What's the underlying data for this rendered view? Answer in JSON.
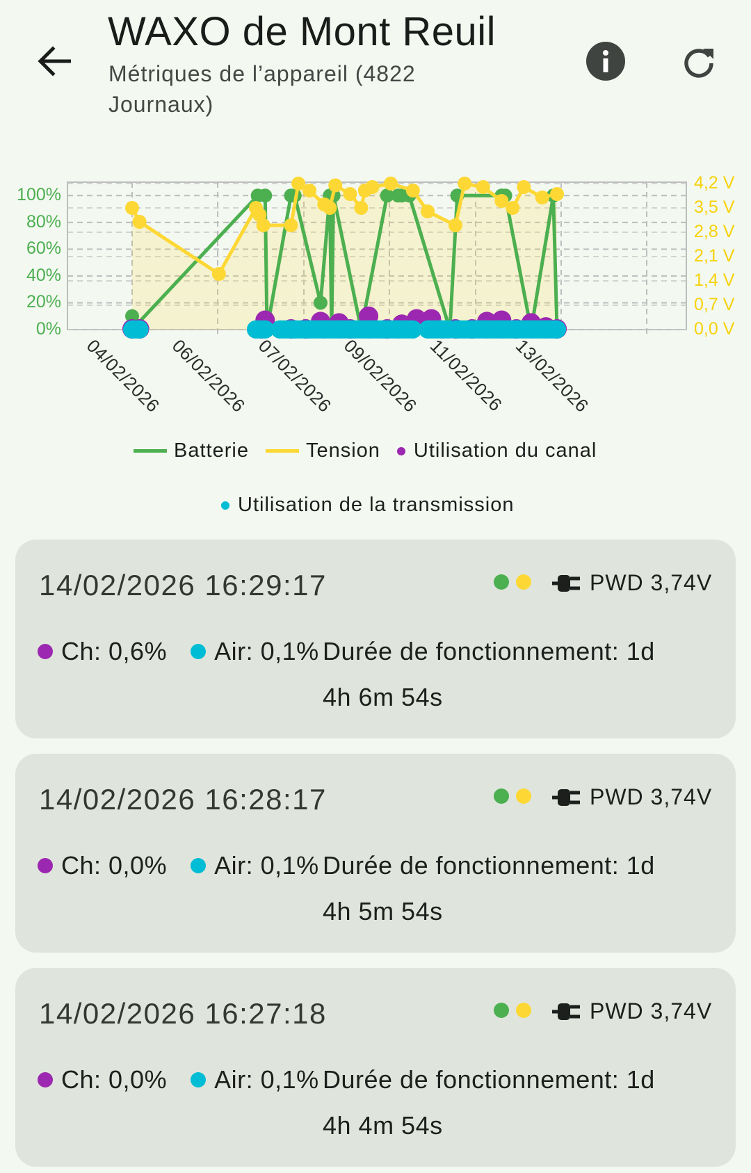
{
  "header": {
    "title": "WAXO de Mont Reuil",
    "subtitle": "Métriques de l’appareil (4822 Journaux)",
    "icons": {
      "back": "arrow-left-icon",
      "info": "info-icon",
      "refresh": "refresh-icon"
    }
  },
  "colors": {
    "battery": "#4caf50",
    "voltage": "#fdd835",
    "channel": "#9c27b0",
    "air": "#00bcd4",
    "card_bg": "#dfe5dc",
    "page_bg": "#f3f8f1"
  },
  "chart_data": {
    "type": "line",
    "x_tick_labels": [
      "04/02/2026",
      "06/02/2026",
      "07/02/2026",
      "09/02/2026",
      "11/02/2026",
      "13/02/2026"
    ],
    "y_left_ticks": [
      "0%",
      "20%",
      "40%",
      "60%",
      "80%",
      "100%"
    ],
    "y_right_ticks": [
      "0,0 V",
      "0,7 V",
      "1,4 V",
      "2,1 V",
      "2,8 V",
      "3,5 V",
      "4,2 V"
    ],
    "y_left_range": [
      0,
      110
    ],
    "y_right_range": [
      0,
      4.2
    ],
    "x_range": [
      0,
      15
    ],
    "grid": true,
    "legend_position": "bottom",
    "series": [
      {
        "name": "Batterie",
        "axis": "left",
        "style": "line",
        "x": [
          0,
          0,
          3.4,
          3.6,
          3.65,
          3.65,
          4.3,
          4.4,
          5.1,
          5.35,
          5.4,
          5.45,
          6.2,
          6.9,
          7.2,
          7.3,
          7.5,
          8.6,
          8.8,
          10.0,
          10.1,
          10.8,
          11.4,
          11.5
        ],
        "y": [
          10,
          0,
          100,
          100,
          3,
          0,
          100,
          100,
          20,
          100,
          0,
          100,
          0,
          100,
          100,
          100,
          100,
          0,
          100,
          100,
          100,
          0,
          100,
          0
        ]
      },
      {
        "name": "Tension",
        "axis": "right",
        "style": "line",
        "x": [
          0,
          0.2,
          2.35,
          3.35,
          3.45,
          3.55,
          4.3,
          4.5,
          4.8,
          5.2,
          5.35,
          5.5,
          5.9,
          6.2,
          6.3,
          6.5,
          7.0,
          7.6,
          8.0,
          8.75,
          9.0,
          9.5,
          10.0,
          10.3,
          10.6,
          11.1,
          11.5
        ],
        "y": [
          3.5,
          3.1,
          1.6,
          3.5,
          3.3,
          3.0,
          3.0,
          4.2,
          4.0,
          3.6,
          3.5,
          4.15,
          3.9,
          3.5,
          4.0,
          4.1,
          4.2,
          4.0,
          3.4,
          3.0,
          4.2,
          4.1,
          3.7,
          3.5,
          4.1,
          3.8,
          3.9
        ]
      },
      {
        "name": "Utilisation du canal",
        "axis": "left",
        "style": "scatter",
        "x": [
          0,
          0.2,
          3.5,
          3.6,
          4.3,
          4.7,
          5.1,
          5.6,
          5.9,
          6.4,
          6.9,
          7.3,
          7.7,
          8.1,
          8.75,
          9.2,
          9.6,
          10.0,
          10.4,
          10.8,
          11.2,
          11.5
        ],
        "y": [
          0.5,
          0.5,
          0.5,
          7,
          0.5,
          0.5,
          6,
          5,
          0.5,
          10,
          0.5,
          4,
          8,
          8,
          0.5,
          0.5,
          6,
          7,
          0.5,
          5,
          2,
          0.5
        ]
      },
      {
        "name": "Utilisation de la transmission",
        "axis": "left",
        "style": "scatter",
        "x": [
          0,
          0.2,
          3.35,
          3.6,
          4.0,
          4.4,
          4.8,
          5.2,
          5.6,
          6.0,
          6.4,
          6.8,
          7.2,
          7.6,
          8.0,
          8.4,
          8.8,
          9.2,
          9.6,
          10.0,
          10.4,
          10.8,
          11.2,
          11.5
        ],
        "y": [
          0.1,
          0.1,
          0.1,
          0.1,
          0.1,
          0.1,
          0.1,
          0.1,
          0.1,
          0.1,
          0.1,
          0.1,
          0.1,
          0.1,
          0.1,
          0.1,
          0.1,
          0.1,
          0.1,
          0.1,
          0.1,
          0.1,
          0.1,
          0.1
        ]
      }
    ]
  },
  "legend": {
    "battery": "Batterie",
    "voltage": "Tension",
    "channel": "Utilisation du canal",
    "air": "Utilisation de la transmission"
  },
  "logs": [
    {
      "time": "14/02/2026 16:29:17",
      "power_icon": "plug-icon",
      "power": "PWD 3,74V",
      "ch": "Ch: 0,6%",
      "air": "Air: 0,1%",
      "uptime_line1": "Durée de fonctionnement: 1d",
      "uptime_line2": "4h 6m 54s"
    },
    {
      "time": "14/02/2026 16:28:17",
      "power_icon": "plug-icon",
      "power": "PWD 3,74V",
      "ch": "Ch: 0,0%",
      "air": "Air: 0,1%",
      "uptime_line1": "Durée de fonctionnement: 1d",
      "uptime_line2": "4h 5m 54s"
    },
    {
      "time": "14/02/2026 16:27:18",
      "power_icon": "plug-icon",
      "power": "PWD 3,74V",
      "ch": "Ch: 0,0%",
      "air": "Air: 0,1%",
      "uptime_line1": "Durée de fonctionnement: 1d",
      "uptime_line2": "4h 4m 54s"
    }
  ]
}
